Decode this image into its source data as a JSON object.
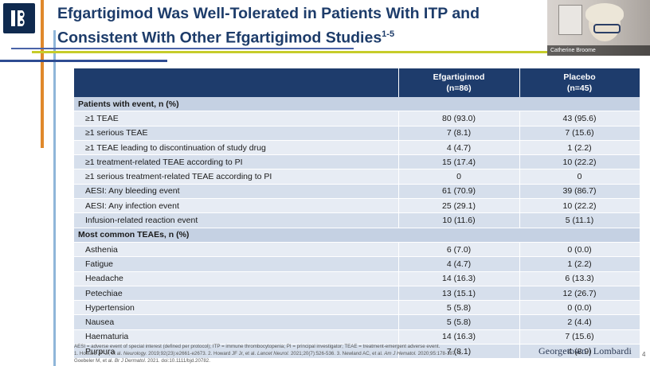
{
  "slide": {
    "title_line1": "Efgartigimod Was Well-Tolerated in Patients With ITP and",
    "title_line2": "Consistent With Other Efgartigimod Studies",
    "title_refs": "1-5"
  },
  "video": {
    "presenter_name": "Catherine Broome"
  },
  "logo": {
    "icon": "brand-logo-icon",
    "color": "#0f2a4f"
  },
  "table": {
    "headers": [
      {
        "line1": "",
        "line2": ""
      },
      {
        "line1": "Efgartigimod",
        "line2": "(n=86)"
      },
      {
        "line1": "Placebo",
        "line2": "(n=45)"
      }
    ],
    "sections": [
      {
        "title": "Patients with event, n (%)",
        "rows": [
          {
            "label": "≥1 TEAE",
            "efg": "80 (93.0)",
            "pbo": "43 (95.6)"
          },
          {
            "label": "≥1 serious TEAE",
            "efg": "7 (8.1)",
            "pbo": "7 (15.6)"
          },
          {
            "label": "≥1 TEAE leading to discontinuation of study drug",
            "efg": "4 (4.7)",
            "pbo": "1 (2.2)"
          },
          {
            "label": "≥1 treatment-related TEAE according to PI",
            "efg": "15 (17.4)",
            "pbo": "10 (22.2)"
          },
          {
            "label": "≥1 serious treatment-related TEAE according to PI",
            "efg": "0",
            "pbo": "0"
          },
          {
            "label": "AESI: Any bleeding event",
            "efg": "61 (70.9)",
            "pbo": "39 (86.7)"
          },
          {
            "label": "AESI: Any infection event",
            "efg": "25 (29.1)",
            "pbo": "10 (22.2)"
          },
          {
            "label": "Infusion-related reaction event",
            "efg": "10 (11.6)",
            "pbo": "5 (11.1)"
          }
        ]
      },
      {
        "title": "Most common TEAEs, n (%)",
        "rows": [
          {
            "label": "Asthenia",
            "efg": "6 (7.0)",
            "pbo": "0 (0.0)"
          },
          {
            "label": "Fatigue",
            "efg": "4 (4.7)",
            "pbo": "1 (2.2)"
          },
          {
            "label": "Headache",
            "efg": "14 (16.3)",
            "pbo": "6 (13.3)"
          },
          {
            "label": "Petechiae",
            "efg": "13 (15.1)",
            "pbo": "12 (26.7)"
          },
          {
            "label": "Hypertension",
            "efg": "5 (5.8)",
            "pbo": "0 (0.0)"
          },
          {
            "label": "Nausea",
            "efg": "5 (5.8)",
            "pbo": "2 (4.4)"
          },
          {
            "label": "Haematuria",
            "efg": "14 (16.3)",
            "pbo": "7 (15.6)"
          },
          {
            "label": "Purpura",
            "efg": "7 (8.1)",
            "pbo": "4 (8.9)"
          }
        ]
      }
    ]
  },
  "footnote": {
    "abbrev": "AESI = adverse event of special interest (defined per protocol); ITP = immune thrombocytopenia; PI = principal investigator; TEAE = treatment-emergent adverse event.",
    "ref1_pre": "1. Howard JF Jr, et al. ",
    "ref1_journal": "Neurology.",
    "ref1_post": " 2019;92(23):e2661-e2673. 2. Howard JF Jr, et al. ",
    "ref2_journal": "Lancet Neurol.",
    "ref2_post": " 2021;20(7):526-536. 3. Newland AC, et al. ",
    "ref3_journal": "Am J Hematol.",
    "ref3_post": " 2020;95:178-187. 4.",
    "ref4_pre": "Goebeler M, et al. ",
    "ref4_journal": "Br J Dermatol.",
    "ref4_post": " 2021. doi:10.1111/bjd.20782."
  },
  "brand": {
    "text": "Georgetown | Lombardi"
  },
  "pager": {
    "text": "4"
  }
}
